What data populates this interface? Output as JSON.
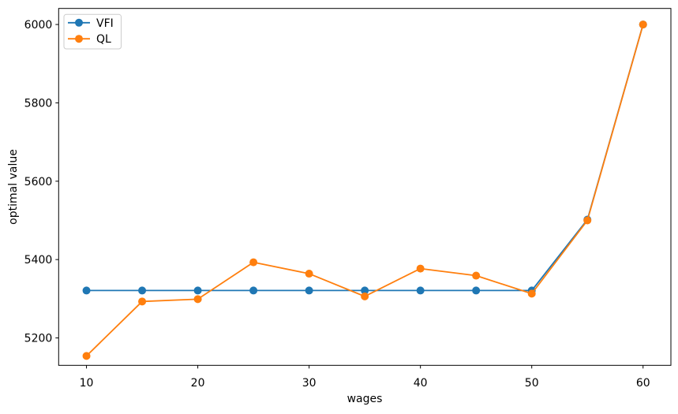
{
  "chart_data": {
    "type": "line",
    "title": "",
    "xlabel": "wages",
    "ylabel": "optimal value",
    "x": [
      10,
      15,
      20,
      25,
      30,
      35,
      40,
      45,
      50,
      55,
      60
    ],
    "series": [
      {
        "name": "VFI",
        "color": "#1f77b4",
        "marker": "o",
        "values": [
          5321,
          5321,
          5321,
          5321,
          5321,
          5321,
          5321,
          5321,
          5321,
          5502,
          6000
        ]
      },
      {
        "name": "QL",
        "color": "#ff7f0e",
        "marker": "o",
        "values": [
          5154,
          5293,
          5299,
          5393,
          5364,
          5306,
          5377,
          5359,
          5313,
          5500,
          6000
        ]
      }
    ],
    "xlim": [
      7.5,
      62.5
    ],
    "ylim": [
      5130,
      6041
    ],
    "xticks": [
      10,
      20,
      30,
      40,
      50,
      60
    ],
    "yticks": [
      5200,
      5400,
      5600,
      5800,
      6000
    ],
    "grid": false,
    "legend_position": "upper left",
    "colors": {
      "spine": "#000000",
      "background": "#ffffff",
      "legend_border": "#cccccc"
    }
  }
}
